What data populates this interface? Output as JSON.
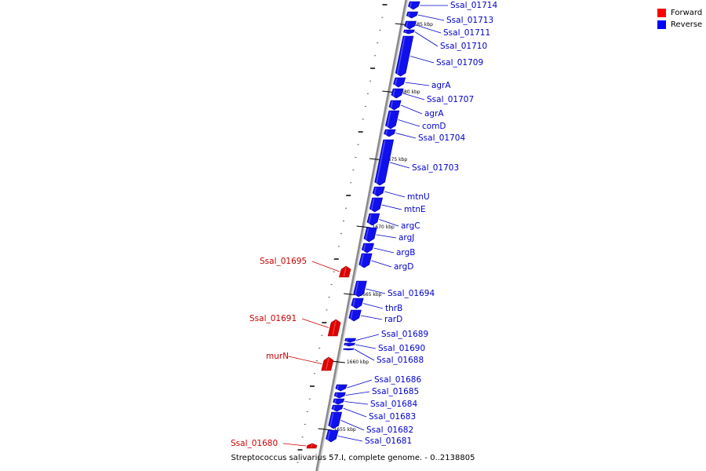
{
  "legend": {
    "forward_label": "Forward",
    "reverse_label": "Reverse",
    "forward_color": "#ff0000",
    "reverse_color": "#0000ff"
  },
  "caption": "Streptococcus salivarius 57.I, complete genome. - 0..2138805",
  "colors": {
    "backbone": "#8a8a8a",
    "forward_gene": "#e00000",
    "reverse_gene": "#1010ee",
    "forward_label": "#cc0000",
    "reverse_label": "#0000cc"
  },
  "scale": {
    "unit": "kbp",
    "ticks": [
      {
        "kbp": 1685,
        "label": "1685 kbp"
      },
      {
        "kbp": 1680,
        "label": "1680 kbp"
      },
      {
        "kbp": 1675,
        "label": "1675 kbp"
      },
      {
        "kbp": 1670,
        "label": "1670 kbp"
      },
      {
        "kbp": 1665,
        "label": "1665 kbp"
      },
      {
        "kbp": 1660,
        "label": "1660 kbp"
      },
      {
        "kbp": 1655,
        "label": "1655 kbp"
      }
    ]
  },
  "genes": [
    {
      "name": "Ssal_01714",
      "strand": "reverse"
    },
    {
      "name": "Ssal_01713",
      "strand": "reverse"
    },
    {
      "name": "Ssal_01711",
      "strand": "reverse"
    },
    {
      "name": "Ssal_01710",
      "strand": "reverse"
    },
    {
      "name": "Ssal_01709",
      "strand": "reverse"
    },
    {
      "name": "agrA",
      "strand": "reverse"
    },
    {
      "name": "Ssal_01707",
      "strand": "reverse"
    },
    {
      "name": "agrA",
      "strand": "reverse"
    },
    {
      "name": "comD",
      "strand": "reverse"
    },
    {
      "name": "Ssal_01704",
      "strand": "reverse"
    },
    {
      "name": "Ssal_01703",
      "strand": "reverse"
    },
    {
      "name": "mtnU",
      "strand": "reverse"
    },
    {
      "name": "mtnE",
      "strand": "reverse"
    },
    {
      "name": "argC",
      "strand": "reverse"
    },
    {
      "name": "argJ",
      "strand": "reverse"
    },
    {
      "name": "argB",
      "strand": "reverse"
    },
    {
      "name": "argD",
      "strand": "reverse"
    },
    {
      "name": "Ssal_01695",
      "strand": "forward"
    },
    {
      "name": "Ssal_01694",
      "strand": "reverse"
    },
    {
      "name": "thrB",
      "strand": "reverse"
    },
    {
      "name": "rarD",
      "strand": "reverse"
    },
    {
      "name": "Ssal_01691",
      "strand": "forward"
    },
    {
      "name": "Ssal_01689",
      "strand": "reverse"
    },
    {
      "name": "Ssal_01690",
      "strand": "reverse"
    },
    {
      "name": "Ssal_01688",
      "strand": "reverse"
    },
    {
      "name": "murN",
      "strand": "forward"
    },
    {
      "name": "Ssal_01686",
      "strand": "reverse"
    },
    {
      "name": "Ssal_01685",
      "strand": "reverse"
    },
    {
      "name": "Ssal_01684",
      "strand": "reverse"
    },
    {
      "name": "Ssal_01683",
      "strand": "reverse"
    },
    {
      "name": "Ssal_01682",
      "strand": "reverse"
    },
    {
      "name": "Ssal_01681",
      "strand": "reverse"
    },
    {
      "name": "Ssal_01680",
      "strand": "forward"
    }
  ]
}
